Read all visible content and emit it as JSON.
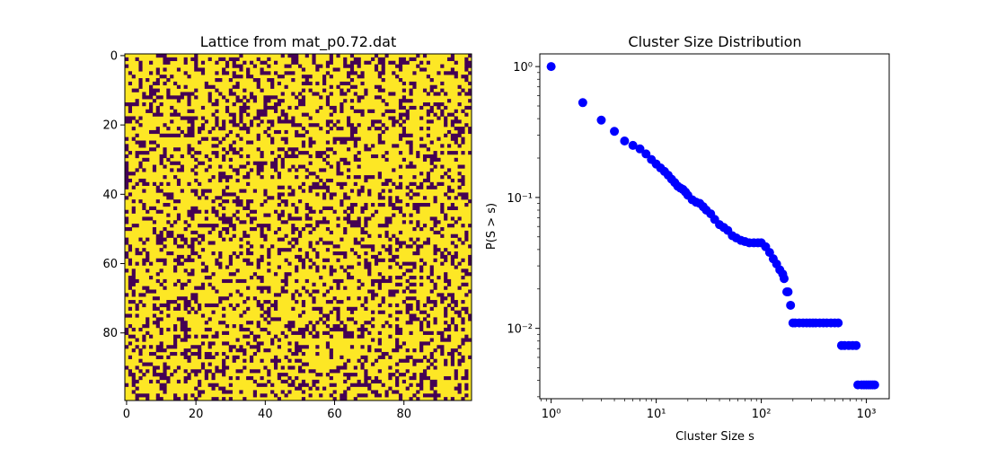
{
  "colors": {
    "lattice_low": "#440154",
    "lattice_high": "#fde725",
    "marker": "#0000ff",
    "axis": "#000000"
  },
  "chart_data": [
    {
      "type": "heatmap",
      "title": "Lattice from mat_p0.72.dat",
      "xlabel": "",
      "ylabel": "",
      "rows": 100,
      "cols": 100,
      "occupation_probability": 0.72,
      "values": "binary lattice (0 = empty, 1 = occupied), ~72% occupied; individual cells not legible",
      "xticks": [
        0,
        20,
        40,
        60,
        80
      ],
      "yticks": [
        0,
        20,
        40,
        60,
        80
      ],
      "colormap": "viridis (two levels)"
    },
    {
      "type": "scatter",
      "title": "Cluster Size Distribution",
      "xlabel": "Cluster Size s",
      "ylabel": "P(S > s)",
      "xscale": "log",
      "yscale": "log",
      "xlim": [
        0.78,
        1650
      ],
      "ylim": [
        0.0029,
        1.25
      ],
      "xticks": [
        1,
        10,
        100,
        1000
      ],
      "xtick_labels": [
        "10⁰",
        "10¹",
        "10²",
        "10³"
      ],
      "yticks": [
        0.01,
        0.1,
        1
      ],
      "ytick_labels": [
        "10⁻²",
        "10⁻¹",
        "10⁰"
      ],
      "x": [
        1,
        2,
        3,
        4,
        5,
        6,
        7,
        8,
        9,
        10,
        11,
        12,
        13,
        14,
        15,
        16,
        17,
        18,
        19,
        20,
        22,
        24,
        26,
        28,
        30,
        33,
        36,
        40,
        44,
        48,
        53,
        58,
        64,
        70,
        77,
        85,
        93,
        100,
        110,
        120,
        130,
        140,
        150,
        160,
        165,
        175,
        180,
        190,
        200,
        210,
        230,
        250,
        270,
        290,
        310,
        330,
        360,
        390,
        420,
        460,
        500,
        540,
        580,
        620,
        680,
        740,
        800,
        830,
        900,
        950,
        1000,
        1050,
        1100,
        1150,
        1200
      ],
      "y": [
        1.0,
        0.53,
        0.39,
        0.32,
        0.27,
        0.25,
        0.235,
        0.215,
        0.195,
        0.18,
        0.168,
        0.158,
        0.148,
        0.138,
        0.13,
        0.122,
        0.118,
        0.115,
        0.11,
        0.104,
        0.096,
        0.092,
        0.09,
        0.085,
        0.08,
        0.075,
        0.068,
        0.062,
        0.059,
        0.056,
        0.051,
        0.049,
        0.047,
        0.046,
        0.045,
        0.045,
        0.045,
        0.045,
        0.042,
        0.038,
        0.034,
        0.031,
        0.028,
        0.026,
        0.024,
        0.019,
        0.019,
        0.015,
        0.011,
        0.011,
        0.011,
        0.011,
        0.011,
        0.011,
        0.011,
        0.011,
        0.011,
        0.011,
        0.011,
        0.011,
        0.011,
        0.011,
        0.0074,
        0.0074,
        0.0074,
        0.0074,
        0.0074,
        0.0037,
        0.0037,
        0.0037,
        0.0037,
        0.0037,
        0.0037,
        0.0037,
        0.0037
      ],
      "grid": false
    }
  ]
}
